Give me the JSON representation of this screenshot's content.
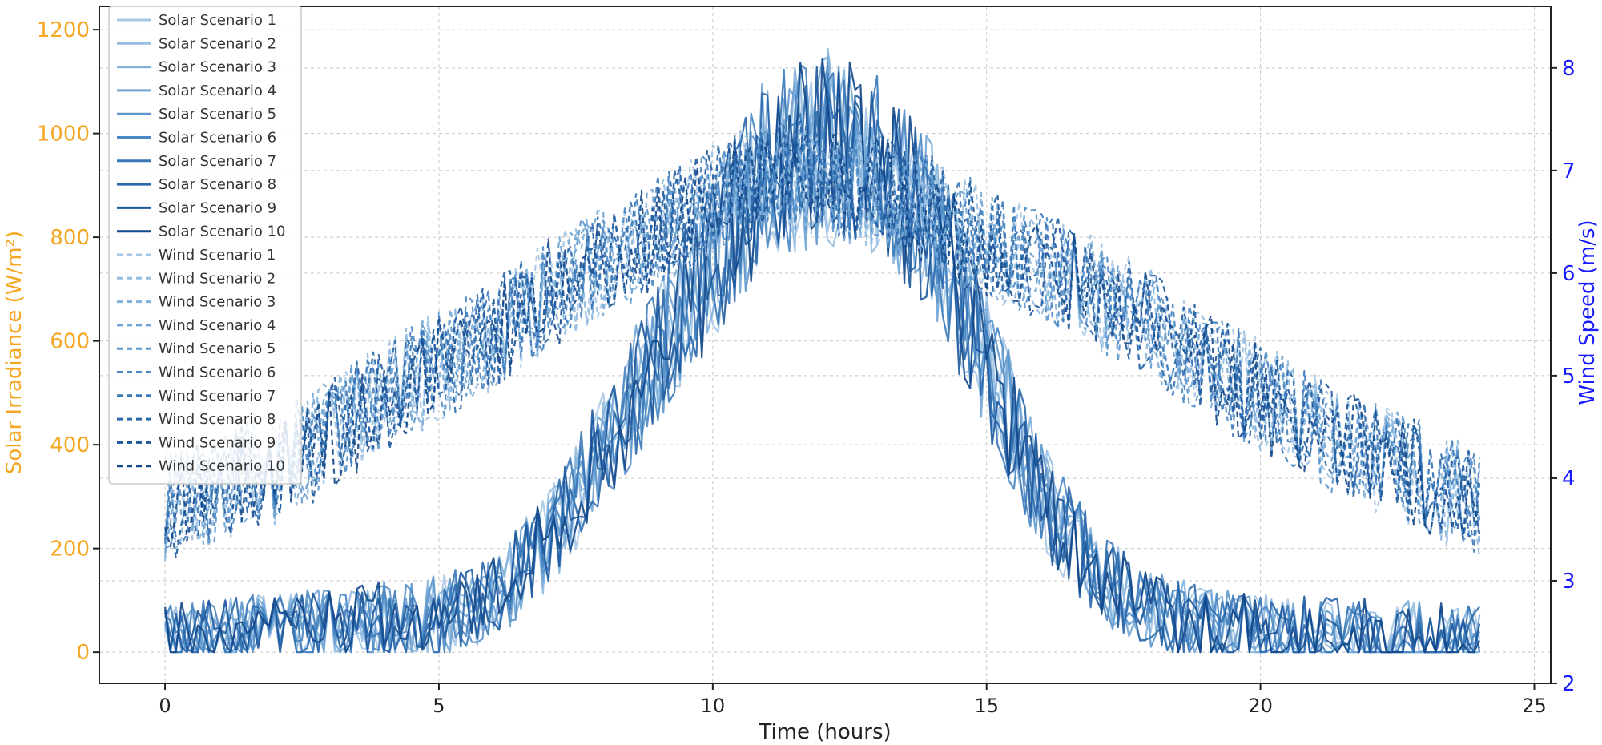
{
  "chart_data": {
    "type": "line",
    "title": "",
    "xlabel": "Time (hours)",
    "ylabel_left": "Solar Irradiance (W/m²)",
    "ylabel_right": "Wind Speed (m/s)",
    "xlim": [
      -1.2,
      25.3
    ],
    "ylim_left": [
      -60,
      1245
    ],
    "ylim_right": [
      2.0,
      8.6
    ],
    "x_ticks": [
      0,
      5,
      10,
      15,
      20,
      25
    ],
    "y_ticks_left": [
      0,
      200,
      400,
      600,
      800,
      1000,
      1200
    ],
    "y_ticks_right": [
      2,
      3,
      4,
      5,
      6,
      7,
      8
    ],
    "grid": true,
    "legend_position": "top-left",
    "colors": {
      "left_axis": "#f5a623",
      "right_axis": "#1a1aff",
      "grid": "#c8c8c8"
    },
    "x_hours": [
      0,
      1,
      2,
      3,
      4,
      5,
      6,
      7,
      8,
      9,
      10,
      11,
      12,
      13,
      14,
      15,
      16,
      17,
      18,
      19,
      20,
      21,
      22,
      23,
      24
    ],
    "solar_mean_profile": [
      20,
      30,
      40,
      50,
      60,
      70,
      100,
      220,
      390,
      580,
      760,
      930,
      980,
      950,
      820,
      560,
      300,
      150,
      80,
      50,
      40,
      35,
      30,
      25,
      20
    ],
    "wind_mean_profile": [
      3.7,
      3.9,
      4.1,
      4.4,
      4.8,
      5.1,
      5.4,
      5.8,
      6.1,
      6.4,
      6.7,
      7.0,
      6.9,
      6.8,
      6.6,
      6.3,
      6.1,
      5.8,
      5.5,
      5.1,
      4.8,
      4.5,
      4.2,
      4.0,
      3.7
    ],
    "series": [
      {
        "name": "Solar Scenario 1",
        "axis": "left",
        "style": "solid",
        "color": "#a6c8e6"
      },
      {
        "name": "Solar Scenario 2",
        "axis": "left",
        "style": "solid",
        "color": "#94bde1"
      },
      {
        "name": "Solar Scenario 3",
        "axis": "left",
        "style": "solid",
        "color": "#82b1db"
      },
      {
        "name": "Solar Scenario 4",
        "axis": "left",
        "style": "solid",
        "color": "#6fa4d4"
      },
      {
        "name": "Solar Scenario 5",
        "axis": "left",
        "style": "solid",
        "color": "#5c96cc"
      },
      {
        "name": "Solar Scenario 6",
        "axis": "left",
        "style": "solid",
        "color": "#4a87c3"
      },
      {
        "name": "Solar Scenario 7",
        "axis": "left",
        "style": "solid",
        "color": "#3978b8"
      },
      {
        "name": "Solar Scenario 8",
        "axis": "left",
        "style": "solid",
        "color": "#2a68ab"
      },
      {
        "name": "Solar Scenario 9",
        "axis": "left",
        "style": "solid",
        "color": "#1d589c"
      },
      {
        "name": "Solar Scenario 10",
        "axis": "left",
        "style": "solid",
        "color": "#13488b"
      },
      {
        "name": "Wind Scenario 1",
        "axis": "right",
        "style": "dashed",
        "color": "#a6c8e6"
      },
      {
        "name": "Wind Scenario 2",
        "axis": "right",
        "style": "dashed",
        "color": "#94bde1"
      },
      {
        "name": "Wind Scenario 3",
        "axis": "right",
        "style": "dashed",
        "color": "#82b1db"
      },
      {
        "name": "Wind Scenario 4",
        "axis": "right",
        "style": "dashed",
        "color": "#6fa4d4"
      },
      {
        "name": "Wind Scenario 5",
        "axis": "right",
        "style": "dashed",
        "color": "#5c96cc"
      },
      {
        "name": "Wind Scenario 6",
        "axis": "right",
        "style": "dashed",
        "color": "#4a87c3"
      },
      {
        "name": "Wind Scenario 7",
        "axis": "right",
        "style": "dashed",
        "color": "#3978b8"
      },
      {
        "name": "Wind Scenario 8",
        "axis": "right",
        "style": "dashed",
        "color": "#2a68ab"
      },
      {
        "name": "Wind Scenario 9",
        "axis": "right",
        "style": "dashed",
        "color": "#1d589c"
      },
      {
        "name": "Wind Scenario 10",
        "axis": "right",
        "style": "dashed",
        "color": "#13488b"
      }
    ]
  }
}
